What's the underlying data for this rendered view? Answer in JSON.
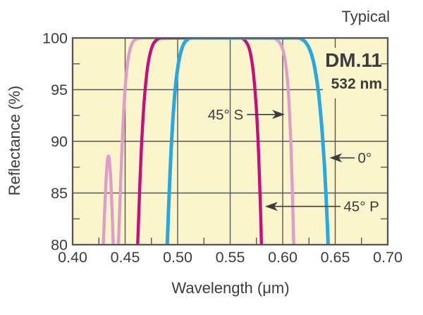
{
  "note": "Typical",
  "product": {
    "model": "DM.11",
    "wavelength": "532 nm"
  },
  "colors": {
    "background": "#ffffff",
    "plot_background": "#fbf5cc",
    "grid": "#55565a",
    "text": "#3b3c3e",
    "series_45s": "#df9dc8",
    "series_45p": "#ca0d7c",
    "series_0deg": "#27a8e0"
  },
  "chart_data": {
    "type": "line",
    "title": "Typical",
    "xlabel": "Wavelength (μm)",
    "ylabel": "Reflectance (%)",
    "xlim": [
      0.4,
      0.7
    ],
    "ylim": [
      80,
      100
    ],
    "grid": true,
    "legend_position": "inline-annotations",
    "x_major_ticks": [
      0.4,
      0.45,
      0.5,
      0.55,
      0.6,
      0.65,
      0.7
    ],
    "x_tick_labels": [
      "0.40",
      "0.45",
      "0.50",
      "0.55",
      "0.60",
      "0.65",
      "0.70"
    ],
    "x_minor_ticks": [
      0.425,
      0.475,
      0.525,
      0.575,
      0.625,
      0.675
    ],
    "y_major_ticks": [
      80,
      85,
      90,
      95,
      100
    ],
    "y_tick_labels": [
      "80",
      "85",
      "90",
      "95",
      "100"
    ],
    "y_minor_ticks": [
      82.5,
      87.5,
      92.5,
      97.5
    ],
    "series": [
      {
        "name": "45° S",
        "color": "#df9dc8",
        "stroke_width": 4.4,
        "points": [
          [
            0.4275,
            76
          ],
          [
            0.4285,
            78.5
          ],
          [
            0.4295,
            80.8
          ],
          [
            0.4308,
            84
          ],
          [
            0.432,
            86.6
          ],
          [
            0.4332,
            88.2
          ],
          [
            0.4345,
            88.5
          ],
          [
            0.4358,
            87.2
          ],
          [
            0.437,
            84.8
          ],
          [
            0.4381,
            81.8
          ],
          [
            0.4391,
            78.3
          ],
          [
            0.44,
            75.6
          ],
          [
            0.4408,
            74.6
          ],
          [
            0.4416,
            75.4
          ],
          [
            0.4426,
            77.6
          ],
          [
            0.4437,
            80.3
          ],
          [
            0.445,
            84
          ],
          [
            0.4464,
            87.8
          ],
          [
            0.4478,
            91.2
          ],
          [
            0.4495,
            94.4
          ],
          [
            0.4512,
            96.6
          ],
          [
            0.4532,
            98.2
          ],
          [
            0.4555,
            99.2
          ],
          [
            0.458,
            99.7
          ],
          [
            0.4615,
            99.93
          ],
          [
            0.466,
            100
          ],
          [
            0.48,
            100
          ],
          [
            0.52,
            100
          ],
          [
            0.56,
            100
          ],
          [
            0.5905,
            100
          ],
          [
            0.5935,
            99.9
          ],
          [
            0.5963,
            99.65
          ],
          [
            0.599,
            99.2
          ],
          [
            0.6013,
            98.4
          ],
          [
            0.6033,
            97.1
          ],
          [
            0.6051,
            95.2
          ],
          [
            0.6066,
            92.6
          ],
          [
            0.6079,
            89.4
          ],
          [
            0.609,
            85.8
          ],
          [
            0.61,
            82
          ],
          [
            0.611,
            78
          ]
        ]
      },
      {
        "name": "45° P",
        "color": "#ca0d7c",
        "stroke_width": 4.4,
        "points": [
          [
            0.4605,
            76
          ],
          [
            0.4613,
            78.2
          ],
          [
            0.4621,
            80.4
          ],
          [
            0.4632,
            83.6
          ],
          [
            0.4644,
            86.9
          ],
          [
            0.4657,
            89.9
          ],
          [
            0.4671,
            92.4
          ],
          [
            0.4686,
            94.5
          ],
          [
            0.4702,
            96.2
          ],
          [
            0.472,
            97.6
          ],
          [
            0.474,
            98.6
          ],
          [
            0.4762,
            99.3
          ],
          [
            0.4787,
            99.7
          ],
          [
            0.4815,
            99.9
          ],
          [
            0.486,
            100
          ],
          [
            0.52,
            100
          ],
          [
            0.545,
            100
          ],
          [
            0.5598,
            100
          ],
          [
            0.5625,
            99.9
          ],
          [
            0.565,
            99.65
          ],
          [
            0.5674,
            99.2
          ],
          [
            0.5695,
            98.4
          ],
          [
            0.5714,
            97.2
          ],
          [
            0.5731,
            95.6
          ],
          [
            0.5746,
            93.6
          ],
          [
            0.576,
            91.2
          ],
          [
            0.5772,
            88.4
          ],
          [
            0.5783,
            85.2
          ],
          [
            0.5793,
            81.8
          ],
          [
            0.5802,
            78.2
          ]
        ]
      },
      {
        "name": "0°",
        "color": "#27a8e0",
        "stroke_width": 5,
        "points": [
          [
            0.4885,
            75.5
          ],
          [
            0.4894,
            78
          ],
          [
            0.4903,
            80.5
          ],
          [
            0.4914,
            83.6
          ],
          [
            0.4926,
            86.6
          ],
          [
            0.4939,
            89.4
          ],
          [
            0.4953,
            91.9
          ],
          [
            0.4968,
            94
          ],
          [
            0.4984,
            95.8
          ],
          [
            0.5002,
            97.2
          ],
          [
            0.5022,
            98.3
          ],
          [
            0.5044,
            99.1
          ],
          [
            0.5068,
            99.6
          ],
          [
            0.5095,
            99.85
          ],
          [
            0.514,
            100
          ],
          [
            0.55,
            100
          ],
          [
            0.59,
            100
          ],
          [
            0.6142,
            100
          ],
          [
            0.6178,
            99.9
          ],
          [
            0.6212,
            99.65
          ],
          [
            0.6243,
            99.2
          ],
          [
            0.6271,
            98.5
          ],
          [
            0.6297,
            97.5
          ],
          [
            0.632,
            96.2
          ],
          [
            0.6342,
            94.6
          ],
          [
            0.6362,
            92.6
          ],
          [
            0.638,
            90.3
          ],
          [
            0.6397,
            87.7
          ],
          [
            0.6412,
            84.8
          ],
          [
            0.6426,
            81.7
          ],
          [
            0.6438,
            78.4
          ],
          [
            0.6448,
            75
          ]
        ]
      }
    ],
    "annotations": [
      {
        "text": "45° S",
        "anchor": "end",
        "label_pos": [
          0.5625,
          92.6
        ],
        "arrow_from": [
          0.566,
          92.6
        ],
        "arrow_to": [
          0.602,
          92.6
        ]
      },
      {
        "text": "0°",
        "anchor": "start",
        "label_pos": [
          0.6715,
          88.4
        ],
        "arrow_from": [
          0.6685,
          88.4
        ],
        "arrow_to": [
          0.6445,
          88.4
        ]
      },
      {
        "text": "45° P",
        "anchor": "start",
        "label_pos": [
          0.658,
          83.7
        ],
        "arrow_from": [
          0.655,
          83.7
        ],
        "arrow_to": [
          0.5832,
          83.7
        ]
      }
    ]
  }
}
